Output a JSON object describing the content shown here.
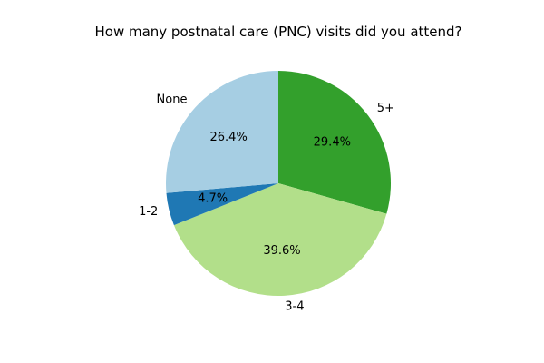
{
  "chart_data": {
    "type": "pie",
    "title": "How many postnatal care (PNC) visits did you attend?",
    "slices": [
      {
        "label": "5+",
        "value": 29.4,
        "pct_label": "29.4%",
        "color": "#33a02c"
      },
      {
        "label": "3-4",
        "value": 39.6,
        "pct_label": "39.6%",
        "color": "#b2df8a"
      },
      {
        "label": "1-2",
        "value": 4.7,
        "pct_label": "4.7%",
        "color": "#1f78b4"
      },
      {
        "label": "None",
        "value": 26.4,
        "pct_label": "26.4%",
        "color": "#a6cee3"
      }
    ],
    "start_angle_deg": 90,
    "direction": "clockwise",
    "legend": "none"
  }
}
